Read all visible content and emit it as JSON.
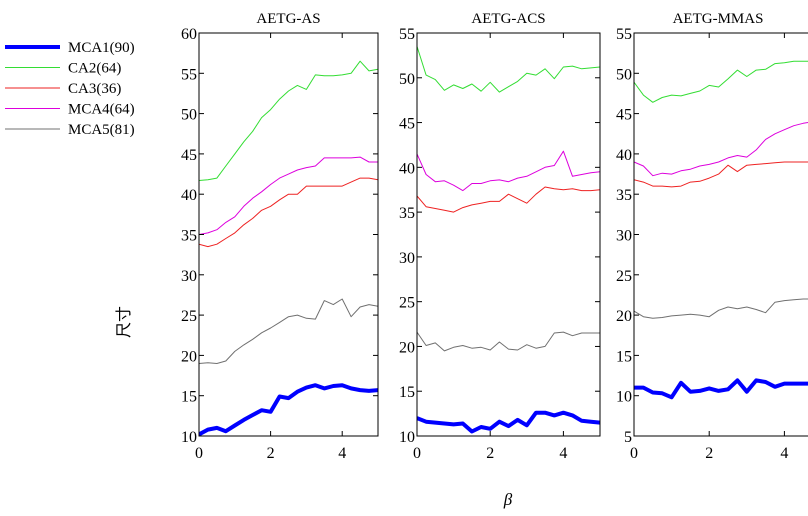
{
  "figure": {
    "ylabel": "尺寸",
    "xlabel": "β"
  },
  "legend": {
    "entries": [
      {
        "label": "MCA1(90)",
        "color": "#0000ff",
        "width": 4
      },
      {
        "label": "CA2(64)",
        "color": "#33dd33",
        "width": 1
      },
      {
        "label": "CA3(36)",
        "color": "#ee2222",
        "width": 1
      },
      {
        "label": "MCA4(64)",
        "color": "#dd00dd",
        "width": 1
      },
      {
        "label": "MCA5(81)",
        "color": "#707070",
        "width": 1
      }
    ]
  },
  "chart_data": [
    {
      "type": "line",
      "title": "AETG-AS",
      "xlim": [
        0,
        5
      ],
      "ylim": [
        10,
        60
      ],
      "xticks": [
        0,
        2,
        4
      ],
      "yticks": [
        10,
        15,
        20,
        25,
        30,
        35,
        40,
        45,
        50,
        55,
        60
      ],
      "x": [
        0,
        0.25,
        0.5,
        0.75,
        1.0,
        1.25,
        1.5,
        1.75,
        2.0,
        2.25,
        2.5,
        2.75,
        3.0,
        3.25,
        3.5,
        3.75,
        4.0,
        4.25,
        4.5,
        4.75,
        5.0
      ],
      "series": [
        {
          "name": "MCA1(90)",
          "values": [
            10.2,
            10.8,
            11.0,
            10.6,
            11.3,
            12.0,
            12.6,
            13.2,
            13.0,
            14.9,
            14.7,
            15.5,
            16.0,
            16.3,
            15.9,
            16.2,
            16.3,
            15.9,
            15.7,
            15.6,
            15.7
          ]
        },
        {
          "name": "CA2(64)",
          "values": [
            41.7,
            41.8,
            42.0,
            43.5,
            45.0,
            46.5,
            47.8,
            49.5,
            50.5,
            51.8,
            52.8,
            53.5,
            53.0,
            54.8,
            54.7,
            54.7,
            54.8,
            55.0,
            56.5,
            55.3,
            55.5
          ]
        },
        {
          "name": "CA3(36)",
          "values": [
            33.8,
            33.5,
            33.8,
            34.5,
            35.2,
            36.2,
            37.0,
            38.0,
            38.5,
            39.3,
            40.0,
            40.0,
            41.0,
            41.0,
            41.0,
            41.0,
            41.0,
            41.5,
            42.0,
            42.0,
            41.8
          ]
        },
        {
          "name": "MCA4(64)",
          "values": [
            35.0,
            35.2,
            35.6,
            36.5,
            37.2,
            38.5,
            39.5,
            40.3,
            41.2,
            42.0,
            42.5,
            43.0,
            43.3,
            43.5,
            44.5,
            44.5,
            44.5,
            44.5,
            44.6,
            44.0,
            44.0
          ]
        },
        {
          "name": "MCA5(81)",
          "values": [
            19.0,
            19.1,
            19.0,
            19.3,
            20.5,
            21.3,
            22.0,
            22.8,
            23.4,
            24.1,
            24.8,
            25.0,
            24.6,
            24.5,
            26.8,
            26.3,
            27.0,
            24.8,
            26.0,
            26.3,
            26.1
          ]
        }
      ]
    },
    {
      "type": "line",
      "title": "AETG-ACS",
      "xlim": [
        0,
        5
      ],
      "ylim": [
        10,
        55
      ],
      "xticks": [
        0,
        2,
        4
      ],
      "yticks": [
        10,
        15,
        20,
        25,
        30,
        35,
        40,
        45,
        50,
        55
      ],
      "x": [
        0,
        0.25,
        0.5,
        0.75,
        1.0,
        1.25,
        1.5,
        1.75,
        2.0,
        2.25,
        2.5,
        2.75,
        3.0,
        3.25,
        3.5,
        3.75,
        4.0,
        4.25,
        4.5,
        4.75,
        5.0
      ],
      "series": [
        {
          "name": "MCA1(90)",
          "values": [
            12.0,
            11.6,
            11.5,
            11.4,
            11.3,
            11.4,
            10.5,
            11.0,
            10.8,
            11.6,
            11.1,
            11.8,
            11.2,
            12.6,
            12.6,
            12.3,
            12.6,
            12.3,
            11.7,
            11.6,
            11.5
          ]
        },
        {
          "name": "CA2(64)",
          "values": [
            53.5,
            50.3,
            49.8,
            48.6,
            49.2,
            48.8,
            49.3,
            48.5,
            49.5,
            48.4,
            49.0,
            49.6,
            50.5,
            50.3,
            51.0,
            49.9,
            51.2,
            51.3,
            51.0,
            51.1,
            51.2
          ]
        },
        {
          "name": "CA3(36)",
          "values": [
            36.8,
            35.6,
            35.4,
            35.2,
            35.0,
            35.5,
            35.8,
            36.0,
            36.2,
            36.2,
            37.0,
            36.5,
            36.0,
            37.0,
            37.8,
            37.6,
            37.5,
            37.6,
            37.4,
            37.4,
            37.5
          ]
        },
        {
          "name": "MCA4(64)",
          "values": [
            41.5,
            39.2,
            38.4,
            38.5,
            38.0,
            37.4,
            38.2,
            38.2,
            38.5,
            38.6,
            38.4,
            38.8,
            39.0,
            39.5,
            40.0,
            40.2,
            41.8,
            39.0,
            39.2,
            39.4,
            39.5
          ]
        },
        {
          "name": "MCA5(81)",
          "values": [
            21.6,
            20.1,
            20.4,
            19.5,
            19.9,
            20.1,
            19.8,
            19.9,
            19.6,
            20.5,
            19.7,
            19.6,
            20.2,
            19.8,
            20.0,
            21.5,
            21.6,
            21.2,
            21.5,
            21.5,
            21.5
          ]
        }
      ]
    },
    {
      "type": "line",
      "title": "AETG-MMAS",
      "xlim": [
        0,
        5
      ],
      "ylim": [
        5,
        55
      ],
      "xticks": [
        0,
        2,
        4
      ],
      "yticks": [
        5,
        10,
        15,
        20,
        25,
        30,
        35,
        40,
        45,
        50,
        55
      ],
      "x": [
        0,
        0.25,
        0.5,
        0.75,
        1.0,
        1.25,
        1.5,
        1.75,
        2.0,
        2.25,
        2.5,
        2.75,
        3.0,
        3.25,
        3.5,
        3.75,
        4.0,
        4.25,
        4.5,
        4.75,
        5.0
      ],
      "series": [
        {
          "name": "MCA1(90)",
          "values": [
            11.0,
            11.0,
            10.4,
            10.3,
            9.8,
            11.6,
            10.5,
            10.6,
            10.9,
            10.6,
            10.8,
            11.9,
            10.5,
            11.9,
            11.7,
            11.1,
            11.5,
            11.5,
            11.5,
            11.5,
            11.5
          ]
        },
        {
          "name": "CA2(64)",
          "values": [
            48.9,
            47.3,
            46.4,
            47.0,
            47.3,
            47.2,
            47.5,
            47.8,
            48.5,
            48.3,
            49.3,
            50.4,
            49.6,
            50.4,
            50.5,
            51.2,
            51.3,
            51.5,
            51.5,
            51.5,
            51.5
          ]
        },
        {
          "name": "CA3(36)",
          "values": [
            36.8,
            36.5,
            36.0,
            36.0,
            35.9,
            36.0,
            36.5,
            36.6,
            37.0,
            37.5,
            38.6,
            37.8,
            38.6,
            38.7,
            38.8,
            38.9,
            39.0,
            39.0,
            39.0,
            39.0,
            39.0
          ]
        },
        {
          "name": "MCA4(64)",
          "values": [
            39.0,
            38.5,
            37.3,
            37.6,
            37.5,
            37.9,
            38.1,
            38.5,
            38.7,
            39.0,
            39.5,
            39.8,
            39.6,
            40.5,
            41.8,
            42.5,
            43.0,
            43.5,
            43.8,
            44.0,
            44.0
          ]
        },
        {
          "name": "MCA5(81)",
          "values": [
            20.5,
            19.8,
            19.6,
            19.7,
            19.9,
            20.0,
            20.1,
            20.0,
            19.8,
            20.6,
            21.0,
            20.8,
            21.0,
            20.7,
            20.3,
            21.6,
            21.8,
            21.9,
            22.0,
            22.0,
            22.0
          ]
        }
      ]
    }
  ]
}
